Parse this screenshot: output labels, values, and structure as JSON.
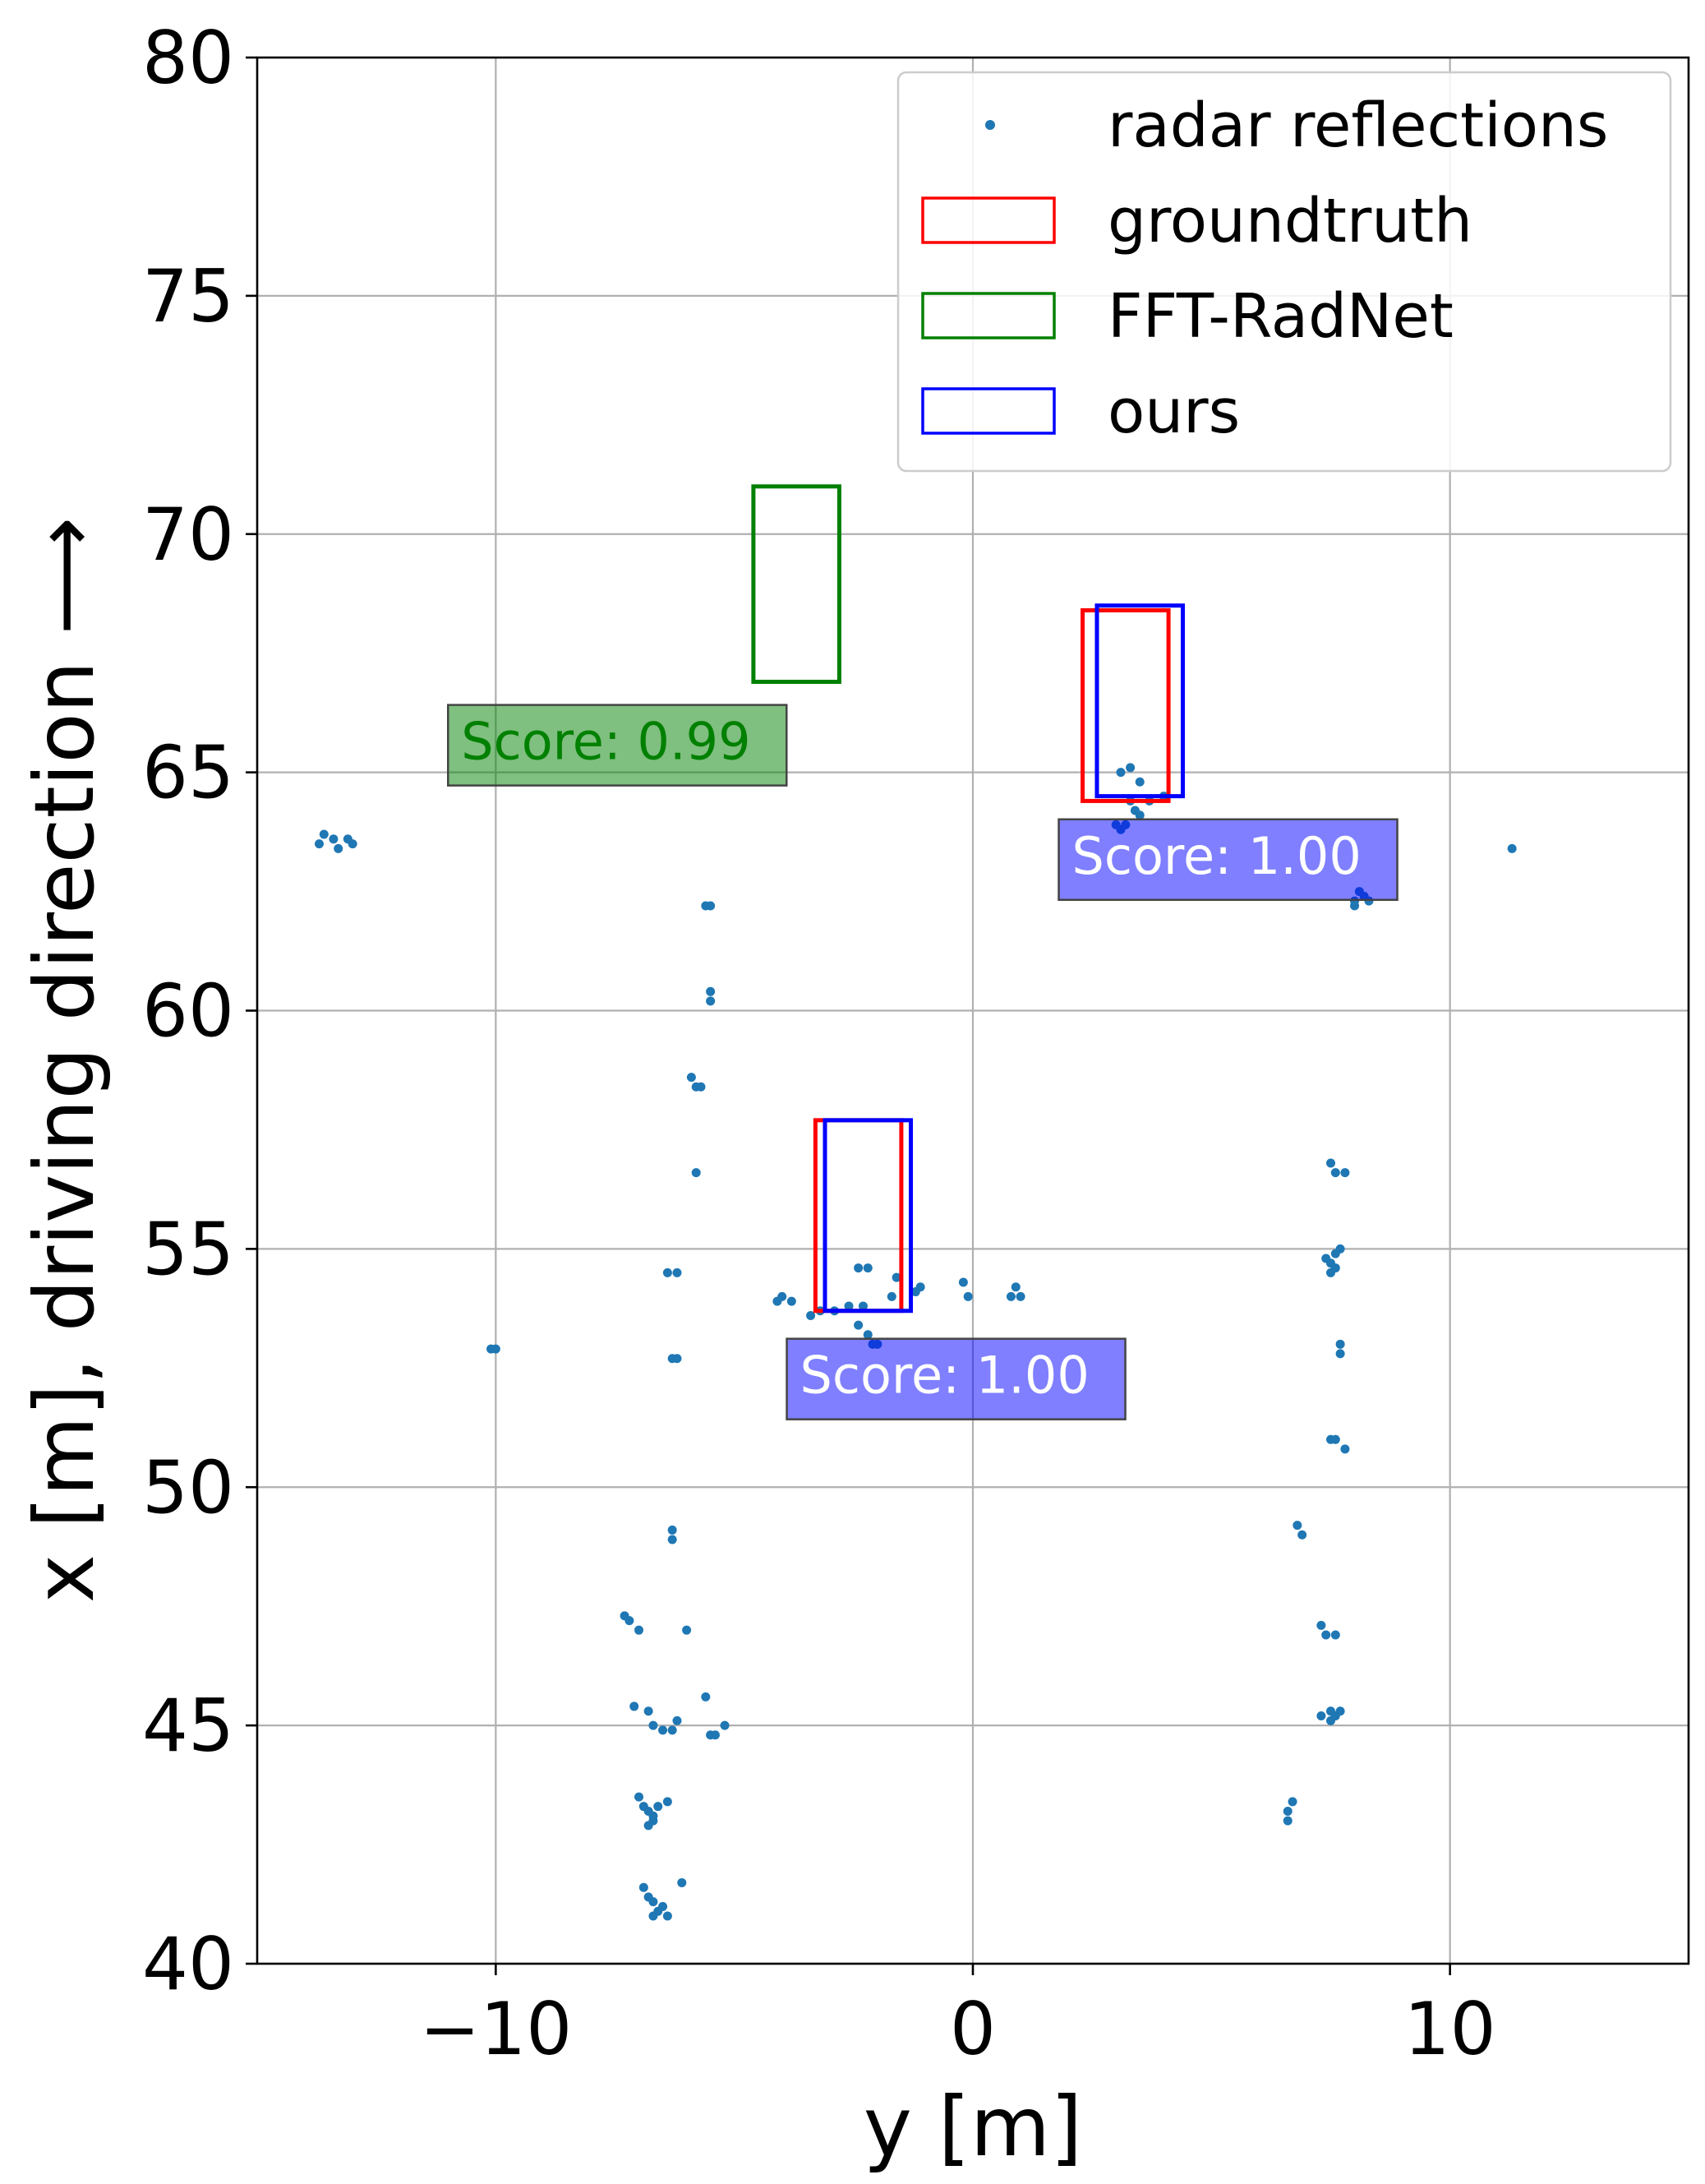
{
  "chart_data": {
    "type": "scatter",
    "xlabel": "y [m]",
    "ylabel": "x [m], driving direction ⟶",
    "xlim": [
      -15,
      15
    ],
    "ylim": [
      40,
      80
    ],
    "xticks": [
      -10,
      0,
      10
    ],
    "xtick_labels": [
      "−10",
      "0",
      "10"
    ],
    "yticks": [
      40,
      45,
      50,
      55,
      60,
      65,
      70,
      75,
      80
    ],
    "ytick_labels": [
      "40",
      "45",
      "50",
      "55",
      "60",
      "65",
      "70",
      "75",
      "80"
    ],
    "grid": true,
    "legend_placement": "top-right",
    "legend": [
      {
        "label": "radar reflections",
        "marker": "point",
        "color": "#1f77b4"
      },
      {
        "label": "groundtruth",
        "marker": "rect",
        "color": "#ff0000"
      },
      {
        "label": "FFT-RadNet",
        "marker": "rect",
        "color": "#008000"
      },
      {
        "label": "ours",
        "marker": "rect",
        "color": "#0000ff"
      }
    ],
    "colors": {
      "points": "#1f77b4",
      "groundtruth": "#ff0000",
      "fft_radnet": "#008000",
      "ours": "#0000ff",
      "score_green_bg": "#008000",
      "score_blue_bg": "#0000ff"
    },
    "boxes": {
      "groundtruth": [
        {
          "y_min": 2.3,
          "y_max": 4.1,
          "x_min": 64.4,
          "x_max": 68.4
        },
        {
          "y_min": -3.3,
          "y_max": -1.5,
          "x_min": 53.7,
          "x_max": 57.7
        }
      ],
      "fft_radnet": [
        {
          "y_min": -4.6,
          "y_max": -2.8,
          "x_min": 66.9,
          "x_max": 71.0
        }
      ],
      "ours": [
        {
          "y_min": 2.6,
          "y_max": 4.4,
          "x_min": 64.5,
          "x_max": 68.5
        },
        {
          "y_min": -3.1,
          "y_max": -1.3,
          "x_min": 53.7,
          "x_max": 57.7
        }
      ]
    },
    "score_labels": [
      {
        "text": "Score: 0.99",
        "series": "fft_radnet",
        "y": -11.0,
        "x": 65.0
      },
      {
        "text": "Score: 1.00",
        "series": "ours",
        "y": 1.8,
        "x": 62.6
      },
      {
        "text": "Score: 1.00",
        "series": "ours",
        "y": -3.9,
        "x": 51.7
      }
    ],
    "series": [
      {
        "name": "radar reflections",
        "points": [
          [
            -13.7,
            63.5
          ],
          [
            -13.6,
            63.7
          ],
          [
            -13.4,
            63.6
          ],
          [
            -13.3,
            63.4
          ],
          [
            -13.1,
            63.6
          ],
          [
            -13.0,
            63.5
          ],
          [
            -5.5,
            62.2
          ],
          [
            -5.6,
            62.2
          ],
          [
            -5.5,
            60.4
          ],
          [
            -5.5,
            60.2
          ],
          [
            -5.9,
            58.6
          ],
          [
            -5.8,
            58.4
          ],
          [
            -5.7,
            58.4
          ],
          [
            -5.8,
            56.6
          ],
          [
            -6.4,
            54.5
          ],
          [
            -6.2,
            54.5
          ],
          [
            -6.3,
            52.7
          ],
          [
            -6.2,
            52.7
          ],
          [
            -10.0,
            52.9
          ],
          [
            -10.1,
            52.9
          ],
          [
            -4.1,
            53.9
          ],
          [
            -4.0,
            54.0
          ],
          [
            -3.8,
            53.9
          ],
          [
            -3.4,
            53.6
          ],
          [
            -3.2,
            53.7
          ],
          [
            -2.9,
            53.7
          ],
          [
            -2.6,
            53.8
          ],
          [
            -2.4,
            53.4
          ],
          [
            -2.2,
            53.2
          ],
          [
            -2.1,
            53.0
          ],
          [
            -2.0,
            53.0
          ],
          [
            -2.3,
            53.8
          ],
          [
            -2.4,
            54.6
          ],
          [
            -2.2,
            54.6
          ],
          [
            -1.7,
            54.0
          ],
          [
            -1.6,
            54.4
          ],
          [
            -1.2,
            54.1
          ],
          [
            -1.1,
            54.2
          ],
          [
            -0.2,
            54.3
          ],
          [
            -0.1,
            54.0
          ],
          [
            0.8,
            54.0
          ],
          [
            0.9,
            54.2
          ],
          [
            1.0,
            54.0
          ],
          [
            3.1,
            65.0
          ],
          [
            3.3,
            65.1
          ],
          [
            3.5,
            64.8
          ],
          [
            3.3,
            64.4
          ],
          [
            3.4,
            64.2
          ],
          [
            3.5,
            64.1
          ],
          [
            3.7,
            64.4
          ],
          [
            4.0,
            64.5
          ],
          [
            3.0,
            63.9
          ],
          [
            3.2,
            63.9
          ],
          [
            3.1,
            63.8
          ],
          [
            11.3,
            63.4
          ],
          [
            8.0,
            62.3
          ],
          [
            8.1,
            62.5
          ],
          [
            8.2,
            62.4
          ],
          [
            8.3,
            62.3
          ],
          [
            8.0,
            62.2
          ],
          [
            7.5,
            56.8
          ],
          [
            7.6,
            56.6
          ],
          [
            7.8,
            56.6
          ],
          [
            7.7,
            55.0
          ],
          [
            7.6,
            54.9
          ],
          [
            7.4,
            54.8
          ],
          [
            7.5,
            54.7
          ],
          [
            7.6,
            54.6
          ],
          [
            7.5,
            54.5
          ],
          [
            7.7,
            53.0
          ],
          [
            7.7,
            52.8
          ],
          [
            7.5,
            51.0
          ],
          [
            7.6,
            51.0
          ],
          [
            7.8,
            50.8
          ],
          [
            6.8,
            49.2
          ],
          [
            6.9,
            49.0
          ],
          [
            7.3,
            47.1
          ],
          [
            7.4,
            46.9
          ],
          [
            7.6,
            46.9
          ],
          [
            7.3,
            45.2
          ],
          [
            7.5,
            45.3
          ],
          [
            7.6,
            45.2
          ],
          [
            7.7,
            45.3
          ],
          [
            7.5,
            45.1
          ],
          [
            6.7,
            43.4
          ],
          [
            6.6,
            43.2
          ],
          [
            6.6,
            43.0
          ],
          [
            -6.3,
            49.1
          ],
          [
            -6.3,
            48.9
          ],
          [
            -7.3,
            47.3
          ],
          [
            -7.2,
            47.2
          ],
          [
            -7.0,
            47.0
          ],
          [
            -6.0,
            47.0
          ],
          [
            -7.1,
            45.4
          ],
          [
            -6.8,
            45.3
          ],
          [
            -6.7,
            45.0
          ],
          [
            -6.5,
            44.9
          ],
          [
            -6.3,
            44.9
          ],
          [
            -6.2,
            45.1
          ],
          [
            -5.6,
            45.6
          ],
          [
            -5.5,
            44.8
          ],
          [
            -5.4,
            44.8
          ],
          [
            -5.2,
            45.0
          ],
          [
            -7.0,
            43.5
          ],
          [
            -6.9,
            43.3
          ],
          [
            -6.8,
            43.2
          ],
          [
            -6.7,
            43.1
          ],
          [
            -6.6,
            43.3
          ],
          [
            -6.4,
            43.4
          ],
          [
            -6.8,
            42.9
          ],
          [
            -6.7,
            43.0
          ],
          [
            -6.9,
            41.6
          ],
          [
            -6.8,
            41.4
          ],
          [
            -6.7,
            41.3
          ],
          [
            -6.6,
            41.1
          ],
          [
            -6.5,
            41.2
          ],
          [
            -6.4,
            41.0
          ],
          [
            -6.7,
            41.0
          ],
          [
            -6.1,
            41.7
          ]
        ]
      }
    ]
  }
}
